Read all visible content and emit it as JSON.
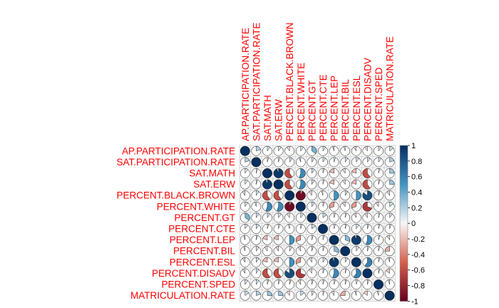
{
  "chart_data": {
    "type": "heatmap",
    "style": "correlation-pie-matrix",
    "variables": [
      "AP.PARTICIPATION.RATE",
      "SAT.PARTICIPATION.RATE",
      "SAT.MATH",
      "SAT.ERW",
      "PERCENT.BLACK.BROWN",
      "PERCENT.WHITE",
      "PERCENT.GT",
      "PERCENT.CTE",
      "PERCENT.LEP",
      "PERCENT.BIL",
      "PERCENT.ESL",
      "PERCENT.DISADV",
      "PERCENT.SPED",
      "MATRICULATION.RATE"
    ],
    "matrix": [
      [
        1.0,
        0.2,
        0.1,
        0.1,
        -0.1,
        0.1,
        0.35,
        0.1,
        -0.05,
        -0.05,
        -0.1,
        -0.1,
        0.1,
        0.15
      ],
      [
        0.2,
        1.0,
        0.05,
        0.05,
        0.1,
        -0.05,
        0.1,
        0.1,
        0.05,
        0.1,
        0.1,
        0.1,
        0.1,
        0.2
      ],
      [
        0.1,
        0.05,
        1.0,
        0.95,
        -0.6,
        0.55,
        0.1,
        0.05,
        -0.2,
        -0.1,
        -0.2,
        -0.6,
        0.05,
        0.25
      ],
      [
        0.1,
        0.05,
        0.95,
        1.0,
        -0.6,
        0.55,
        0.1,
        0.05,
        -0.2,
        -0.1,
        -0.2,
        -0.6,
        0.05,
        0.25
      ],
      [
        -0.1,
        0.1,
        -0.6,
        -0.6,
        1.0,
        -0.95,
        -0.1,
        -0.05,
        0.5,
        0.1,
        0.5,
        0.85,
        0.05,
        -0.1
      ],
      [
        0.1,
        -0.05,
        0.55,
        0.55,
        -0.95,
        1.0,
        0.1,
        0.05,
        -0.3,
        -0.1,
        -0.3,
        -0.7,
        -0.1,
        0.15
      ],
      [
        0.35,
        0.1,
        0.1,
        0.1,
        -0.1,
        0.1,
        1.0,
        0.15,
        0.05,
        0.05,
        -0.1,
        -0.1,
        0.05,
        0.1
      ],
      [
        0.1,
        0.1,
        0.05,
        0.05,
        -0.05,
        0.05,
        0.15,
        1.0,
        0.05,
        0.05,
        0.1,
        0.05,
        0.05,
        0.05
      ],
      [
        -0.05,
        0.05,
        -0.2,
        -0.2,
        0.5,
        -0.3,
        0.05,
        0.05,
        1.0,
        0.3,
        0.95,
        0.55,
        0.05,
        -0.1
      ],
      [
        -0.05,
        0.1,
        -0.1,
        -0.1,
        0.1,
        -0.1,
        0.05,
        0.05,
        0.3,
        1.0,
        0.1,
        0.05,
        0.05,
        -0.25
      ],
      [
        -0.1,
        0.1,
        -0.2,
        -0.2,
        0.5,
        -0.3,
        -0.1,
        0.1,
        0.95,
        0.1,
        1.0,
        0.6,
        0.05,
        -0.05
      ],
      [
        -0.1,
        0.1,
        -0.6,
        -0.6,
        0.85,
        -0.7,
        -0.1,
        0.05,
        0.55,
        0.05,
        0.6,
        1.0,
        0.05,
        -0.15
      ],
      [
        0.1,
        0.1,
        0.05,
        0.05,
        0.05,
        -0.1,
        0.05,
        0.05,
        0.05,
        0.05,
        0.05,
        0.05,
        1.0,
        -0.05
      ],
      [
        0.15,
        0.2,
        0.25,
        0.25,
        -0.1,
        0.15,
        0.1,
        0.05,
        -0.1,
        -0.25,
        -0.05,
        -0.15,
        -0.05,
        1.0
      ]
    ],
    "colorbar": {
      "min": -1,
      "max": 1,
      "ticks": [
        "1",
        "0.8",
        "0.6",
        "0.4",
        "0.2",
        "0",
        "-0.2",
        "-0.4",
        "-0.6",
        "-0.8",
        "-1"
      ]
    },
    "colors": {
      "negative_end": "#67001f",
      "negative_mid": "#d6604d",
      "neutral": "#f7f7f7",
      "positive_mid": "#4393c3",
      "positive_end": "#053061",
      "label": "#ff0000",
      "grid": "#d3d3d3"
    }
  }
}
